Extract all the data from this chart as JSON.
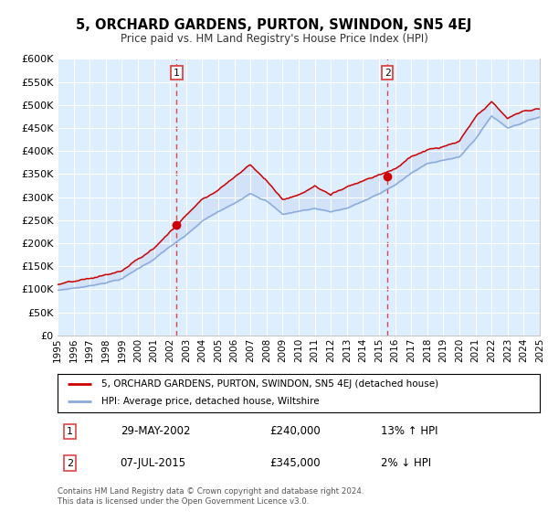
{
  "title": "5, ORCHARD GARDENS, PURTON, SWINDON, SN5 4EJ",
  "subtitle": "Price paid vs. HM Land Registry's House Price Index (HPI)",
  "background_color": "#ffffff",
  "plot_bg_color": "#ddeeff",
  "ylim": [
    0,
    600000
  ],
  "yticks": [
    0,
    50000,
    100000,
    150000,
    200000,
    250000,
    300000,
    350000,
    400000,
    450000,
    500000,
    550000,
    600000
  ],
  "ytick_labels": [
    "£0",
    "£50K",
    "£100K",
    "£150K",
    "£200K",
    "£250K",
    "£300K",
    "£350K",
    "£400K",
    "£450K",
    "£500K",
    "£550K",
    "£600K"
  ],
  "red_line_color": "#cc0000",
  "blue_line_color": "#88aadd",
  "fill_color": "#bbccee",
  "marker_color": "#cc0000",
  "vline_color": "#dd4444",
  "sale1_year": 2002.41,
  "sale1_price": 240000,
  "sale2_year": 2015.52,
  "sale2_price": 345000,
  "legend_label_red": "5, ORCHARD GARDENS, PURTON, SWINDON, SN5 4EJ (detached house)",
  "legend_label_blue": "HPI: Average price, detached house, Wiltshire",
  "sale1_info": "29-MAY-2002",
  "sale1_price_str": "£240,000",
  "sale1_hpi": "13% ↑ HPI",
  "sale2_info": "07-JUL-2015",
  "sale2_price_str": "£345,000",
  "sale2_hpi": "2% ↓ HPI",
  "footnote1": "Contains HM Land Registry data © Crown copyright and database right 2024.",
  "footnote2": "This data is licensed under the Open Government Licence v3.0."
}
